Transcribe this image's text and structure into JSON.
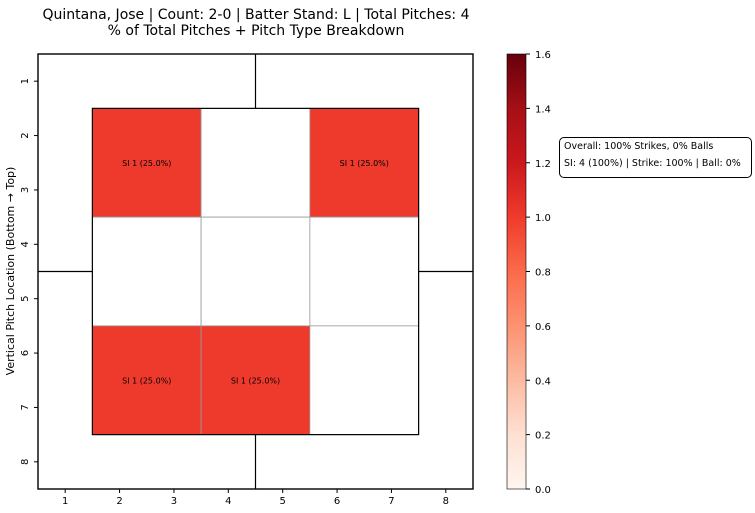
{
  "chart_data": {
    "type": "heatmap",
    "title": "Quintana, Jose | Count: 2-0 | Batter Stand: L | Total Pitches: 4",
    "subtitle": "% of Total Pitches + Pitch Type Breakdown",
    "ylabel": "Vertical Pitch Location (Bottom → Top)",
    "xlabel": "",
    "x_ticks": [
      "1",
      "2",
      "3",
      "4",
      "5",
      "6",
      "7",
      "8"
    ],
    "y_ticks": [
      "1",
      "2",
      "3",
      "4",
      "5",
      "6",
      "7",
      "8"
    ],
    "xlim": [
      0.5,
      8.5
    ],
    "ylim": [
      0.5,
      8.5
    ],
    "zones": [
      {
        "col": 1,
        "row": 1,
        "value": 1.0,
        "label": "SI 1 (25.0%)"
      },
      {
        "col": 2,
        "row": 1,
        "value": 0,
        "label": ""
      },
      {
        "col": 3,
        "row": 1,
        "value": 1.0,
        "label": "SI 1 (25.0%)"
      },
      {
        "col": 1,
        "row": 2,
        "value": 0,
        "label": ""
      },
      {
        "col": 2,
        "row": 2,
        "value": 0,
        "label": ""
      },
      {
        "col": 3,
        "row": 2,
        "value": 0,
        "label": ""
      },
      {
        "col": 1,
        "row": 3,
        "value": 1.0,
        "label": "SI 1 (25.0%)"
      },
      {
        "col": 2,
        "row": 3,
        "value": 1.0,
        "label": "SI 1 (25.0%)"
      },
      {
        "col": 3,
        "row": 3,
        "value": 0,
        "label": ""
      }
    ],
    "colorbar": {
      "min": 0.0,
      "max": 1.6,
      "ticks": [
        "0.0",
        "0.2",
        "0.4",
        "0.6",
        "0.8",
        "1.0",
        "1.2",
        "1.4",
        "1.6"
      ],
      "colormap": "Reds"
    },
    "annotation": {
      "line1": "Overall: 100% Strikes, 0% Balls",
      "line2": "SI: 4 (100%) | Strike: 100% | Ball: 0%"
    }
  },
  "colors": {
    "filled": "#ee3a2c",
    "empty": "#ffffff",
    "frame": "#000000",
    "grid": "#999999"
  }
}
